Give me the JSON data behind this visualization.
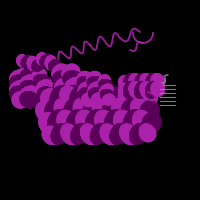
{
  "background_color": "#000000",
  "helix_color": "#8B008B",
  "helix_dark": "#5a005a",
  "helix_light": "#aa22aa",
  "loop_color": "#9900aa",
  "gray_color": "#999999",
  "figsize": [
    2.0,
    2.0
  ],
  "dpi": 100
}
